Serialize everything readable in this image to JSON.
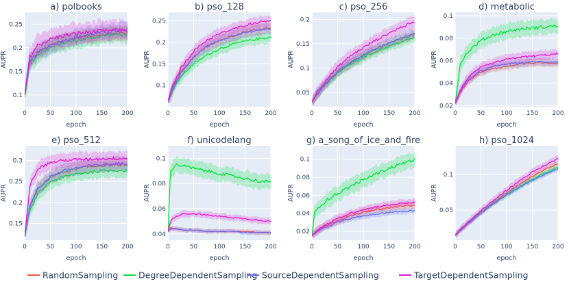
{
  "figure": {
    "background": "#ffffff",
    "plot_bg": "#e5ecf6",
    "grid_color": "#ffffff",
    "text_color": "#2a3f5f"
  },
  "legend": [
    {
      "name": "RandomSampling",
      "color": "#ef553b"
    },
    {
      "name": "DegreeDependentSampling",
      "color": "#00e43b"
    },
    {
      "name": "SourceDependentSampling",
      "color": "#636efa"
    },
    {
      "name": "TargetDependentSampling",
      "color": "#e41ad0"
    }
  ],
  "chart_data": [
    {
      "type": "line",
      "title": "a) polbooks",
      "xlabel": "epoch",
      "ylabel": "AUPR",
      "xlim": [
        0,
        200
      ],
      "ylim": [
        0.075,
        0.275
      ],
      "xticks": [
        0,
        50,
        100,
        150,
        200
      ],
      "yticks": [
        0.1,
        0.15,
        0.2,
        0.25
      ],
      "ytick_labels": [
        "0.1",
        "0.15",
        "0.2",
        "0.25"
      ],
      "x": [
        0,
        10,
        25,
        50,
        75,
        100,
        125,
        150,
        175,
        200
      ],
      "series": [
        {
          "name": "RandomSampling",
          "values": [
            0.1,
            0.17,
            0.19,
            0.205,
            0.215,
            0.22,
            0.225,
            0.228,
            0.23,
            0.232
          ],
          "band": 0.018
        },
        {
          "name": "DegreeDependentSampling",
          "values": [
            0.1,
            0.165,
            0.185,
            0.2,
            0.21,
            0.215,
            0.22,
            0.225,
            0.228,
            0.228
          ],
          "band": 0.02
        },
        {
          "name": "SourceDependentSampling",
          "values": [
            0.1,
            0.17,
            0.19,
            0.205,
            0.215,
            0.222,
            0.228,
            0.232,
            0.235,
            0.238
          ],
          "band": 0.02
        },
        {
          "name": "TargetDependentSampling",
          "values": [
            0.1,
            0.18,
            0.205,
            0.218,
            0.225,
            0.23,
            0.233,
            0.235,
            0.237,
            0.237
          ],
          "band": 0.025
        }
      ]
    },
    {
      "type": "line",
      "title": "b) pso_128",
      "xlabel": "epoch",
      "ylabel": "AUPR",
      "xlim": [
        0,
        200
      ],
      "ylim": [
        0.05,
        0.27
      ],
      "xticks": [
        0,
        50,
        100,
        150,
        200
      ],
      "yticks": [
        0.1,
        0.15,
        0.2,
        0.25
      ],
      "ytick_labels": [
        "0.1",
        "0.15",
        "0.2",
        "0.25"
      ],
      "x": [
        0,
        10,
        25,
        50,
        75,
        100,
        125,
        150,
        175,
        200
      ],
      "series": [
        {
          "name": "RandomSampling",
          "values": [
            0.063,
            0.095,
            0.13,
            0.165,
            0.19,
            0.205,
            0.215,
            0.225,
            0.23,
            0.235
          ],
          "band": 0.015
        },
        {
          "name": "DegreeDependentSampling",
          "values": [
            0.063,
            0.09,
            0.12,
            0.15,
            0.17,
            0.185,
            0.195,
            0.203,
            0.208,
            0.212
          ],
          "band": 0.015
        },
        {
          "name": "SourceDependentSampling",
          "values": [
            0.063,
            0.095,
            0.128,
            0.165,
            0.19,
            0.205,
            0.215,
            0.222,
            0.228,
            0.232
          ],
          "band": 0.015
        },
        {
          "name": "TargetDependentSampling",
          "values": [
            0.063,
            0.1,
            0.14,
            0.18,
            0.205,
            0.22,
            0.23,
            0.24,
            0.247,
            0.252
          ],
          "band": 0.015
        }
      ]
    },
    {
      "type": "line",
      "title": "c) pso_256",
      "xlabel": "epoch",
      "ylabel": "AUPR",
      "xlim": [
        0,
        200
      ],
      "ylim": [
        0.02,
        0.215
      ],
      "xticks": [
        0,
        50,
        100,
        150,
        200
      ],
      "yticks": [
        0.05,
        0.1,
        0.15,
        0.2
      ],
      "ytick_labels": [
        "0.05",
        "0.1",
        "0.15",
        "0.2"
      ],
      "x": [
        0,
        10,
        25,
        50,
        75,
        100,
        125,
        150,
        175,
        200
      ],
      "series": [
        {
          "name": "RandomSampling",
          "values": [
            0.03,
            0.045,
            0.065,
            0.092,
            0.11,
            0.125,
            0.138,
            0.15,
            0.16,
            0.17
          ],
          "band": 0.012
        },
        {
          "name": "DegreeDependentSampling",
          "values": [
            0.03,
            0.045,
            0.064,
            0.09,
            0.108,
            0.122,
            0.135,
            0.145,
            0.155,
            0.163
          ],
          "band": 0.012
        },
        {
          "name": "SourceDependentSampling",
          "values": [
            0.03,
            0.045,
            0.066,
            0.093,
            0.112,
            0.127,
            0.14,
            0.152,
            0.162,
            0.172
          ],
          "band": 0.012
        },
        {
          "name": "TargetDependentSampling",
          "values": [
            0.03,
            0.05,
            0.072,
            0.102,
            0.125,
            0.142,
            0.158,
            0.172,
            0.185,
            0.195
          ],
          "band": 0.015
        }
      ]
    },
    {
      "type": "line",
      "title": "d) metabolic",
      "xlabel": "epoch",
      "ylabel": "AUPR",
      "xlim": [
        0,
        200
      ],
      "ylim": [
        0.019,
        0.103
      ],
      "xticks": [
        0,
        50,
        100,
        150,
        200
      ],
      "yticks": [
        0.02,
        0.04,
        0.06,
        0.08,
        0.1
      ],
      "ytick_labels": [
        "0.02",
        "0.04",
        "0.06",
        "0.08",
        "0.1"
      ],
      "x": [
        0,
        10,
        25,
        50,
        75,
        100,
        125,
        150,
        175,
        200
      ],
      "series": [
        {
          "name": "RandomSampling",
          "values": [
            0.022,
            0.032,
            0.042,
            0.05,
            0.053,
            0.055,
            0.057,
            0.058,
            0.058,
            0.058
          ],
          "band": 0.004
        },
        {
          "name": "DegreeDependentSampling",
          "values": [
            0.022,
            0.058,
            0.068,
            0.078,
            0.083,
            0.086,
            0.088,
            0.089,
            0.09,
            0.091
          ],
          "band": 0.008
        },
        {
          "name": "SourceDependentSampling",
          "values": [
            0.022,
            0.033,
            0.043,
            0.051,
            0.055,
            0.057,
            0.058,
            0.059,
            0.059,
            0.059
          ],
          "band": 0.004
        },
        {
          "name": "TargetDependentSampling",
          "values": [
            0.022,
            0.034,
            0.045,
            0.054,
            0.058,
            0.061,
            0.063,
            0.064,
            0.065,
            0.066
          ],
          "band": 0.005
        }
      ]
    },
    {
      "type": "line",
      "title": "e) pso_512",
      "xlabel": "epoch",
      "ylabel": "AUPR",
      "xlim": [
        0,
        200
      ],
      "ylim": [
        0.11,
        0.335
      ],
      "xticks": [
        0,
        50,
        100,
        150,
        200
      ],
      "yticks": [
        0.15,
        0.2,
        0.25,
        0.3
      ],
      "ytick_labels": [
        "0.15",
        "0.2",
        "0.25",
        "0.3"
      ],
      "x": [
        0,
        10,
        25,
        50,
        75,
        100,
        125,
        150,
        175,
        200
      ],
      "series": [
        {
          "name": "RandomSampling",
          "values": [
            0.12,
            0.19,
            0.23,
            0.26,
            0.272,
            0.28,
            0.285,
            0.288,
            0.29,
            0.29
          ],
          "band": 0.018
        },
        {
          "name": "DegreeDependentSampling",
          "values": [
            0.12,
            0.18,
            0.22,
            0.25,
            0.26,
            0.268,
            0.272,
            0.275,
            0.277,
            0.275
          ],
          "band": 0.02
        },
        {
          "name": "SourceDependentSampling",
          "values": [
            0.12,
            0.19,
            0.232,
            0.262,
            0.275,
            0.282,
            0.287,
            0.29,
            0.292,
            0.293
          ],
          "band": 0.02
        },
        {
          "name": "TargetDependentSampling",
          "values": [
            0.12,
            0.24,
            0.28,
            0.295,
            0.3,
            0.302,
            0.303,
            0.304,
            0.305,
            0.305
          ],
          "band": 0.02
        }
      ]
    },
    {
      "type": "line",
      "title": "f) unicodelang",
      "xlabel": "epoch",
      "ylabel": "AUPR",
      "xlim": [
        0,
        200
      ],
      "ylim": [
        0.035,
        0.11
      ],
      "xticks": [
        0,
        50,
        100,
        150,
        200
      ],
      "yticks": [
        0.04,
        0.06,
        0.08,
        0.1
      ],
      "ytick_labels": [
        "0.04",
        "0.06",
        "0.08",
        "0.1"
      ],
      "x": [
        0,
        5,
        15,
        30,
        50,
        75,
        100,
        125,
        150,
        175,
        200
      ],
      "series": [
        {
          "name": "RandomSampling",
          "values": [
            0.042,
            0.045,
            0.044,
            0.043,
            0.043,
            0.042,
            0.042,
            0.042,
            0.042,
            0.041,
            0.041
          ],
          "band": 0.002
        },
        {
          "name": "DegreeDependentSampling",
          "values": [
            0.042,
            0.09,
            0.095,
            0.094,
            0.092,
            0.09,
            0.088,
            0.086,
            0.084,
            0.082,
            0.081
          ],
          "band": 0.007
        },
        {
          "name": "SourceDependentSampling",
          "values": [
            0.042,
            0.044,
            0.044,
            0.043,
            0.043,
            0.042,
            0.042,
            0.042,
            0.041,
            0.041,
            0.041
          ],
          "band": 0.002
        },
        {
          "name": "TargetDependentSampling",
          "values": [
            0.042,
            0.05,
            0.054,
            0.056,
            0.056,
            0.055,
            0.054,
            0.053,
            0.052,
            0.051,
            0.05
          ],
          "band": 0.003
        }
      ]
    },
    {
      "type": "line",
      "title": "g) a_song_of_ice_and_fire",
      "xlabel": "epoch",
      "ylabel": "AUPR",
      "xlim": [
        0,
        200
      ],
      "ylim": [
        0.01,
        0.115
      ],
      "xticks": [
        0,
        50,
        100,
        150,
        200
      ],
      "yticks": [
        0.02,
        0.04,
        0.06,
        0.08,
        0.1
      ],
      "ytick_labels": [
        "0.02",
        "0.04",
        "0.06",
        "0.08",
        "0.1"
      ],
      "x": [
        0,
        5,
        15,
        30,
        50,
        75,
        100,
        125,
        150,
        175,
        200
      ],
      "series": [
        {
          "name": "RandomSampling",
          "values": [
            0.015,
            0.018,
            0.022,
            0.027,
            0.032,
            0.037,
            0.041,
            0.044,
            0.046,
            0.048,
            0.049
          ],
          "band": 0.005
        },
        {
          "name": "DegreeDependentSampling",
          "values": [
            0.015,
            0.04,
            0.048,
            0.055,
            0.062,
            0.07,
            0.077,
            0.084,
            0.09,
            0.095,
            0.1
          ],
          "band": 0.01
        },
        {
          "name": "SourceDependentSampling",
          "values": [
            0.015,
            0.017,
            0.021,
            0.025,
            0.03,
            0.034,
            0.037,
            0.039,
            0.041,
            0.042,
            0.043
          ],
          "band": 0.004
        },
        {
          "name": "TargetDependentSampling",
          "values": [
            0.015,
            0.018,
            0.023,
            0.028,
            0.034,
            0.04,
            0.044,
            0.047,
            0.049,
            0.051,
            0.052
          ],
          "band": 0.005
        }
      ]
    },
    {
      "type": "line",
      "title": "h) pso_1024",
      "xlabel": "epoch",
      "ylabel": "AUPR",
      "xlim": [
        0,
        200
      ],
      "ylim": [
        0.008,
        0.14
      ],
      "xticks": [
        0,
        50,
        100,
        150,
        200
      ],
      "yticks": [
        0.05,
        0.1
      ],
      "ytick_labels": [
        "0.05",
        "0.1"
      ],
      "x": [
        0,
        10,
        25,
        50,
        75,
        100,
        125,
        150,
        175,
        200
      ],
      "series": [
        {
          "name": "RandomSampling",
          "values": [
            0.015,
            0.022,
            0.032,
            0.047,
            0.061,
            0.074,
            0.086,
            0.097,
            0.107,
            0.115
          ],
          "band": 0.004
        },
        {
          "name": "DegreeDependentSampling",
          "values": [
            0.015,
            0.022,
            0.032,
            0.047,
            0.06,
            0.072,
            0.083,
            0.093,
            0.102,
            0.11
          ],
          "band": 0.004
        },
        {
          "name": "SourceDependentSampling",
          "values": [
            0.015,
            0.022,
            0.031,
            0.046,
            0.059,
            0.071,
            0.082,
            0.092,
            0.1,
            0.108
          ],
          "band": 0.004
        },
        {
          "name": "TargetDependentSampling",
          "values": [
            0.015,
            0.023,
            0.033,
            0.049,
            0.064,
            0.078,
            0.091,
            0.103,
            0.113,
            0.122
          ],
          "band": 0.006
        }
      ]
    }
  ]
}
